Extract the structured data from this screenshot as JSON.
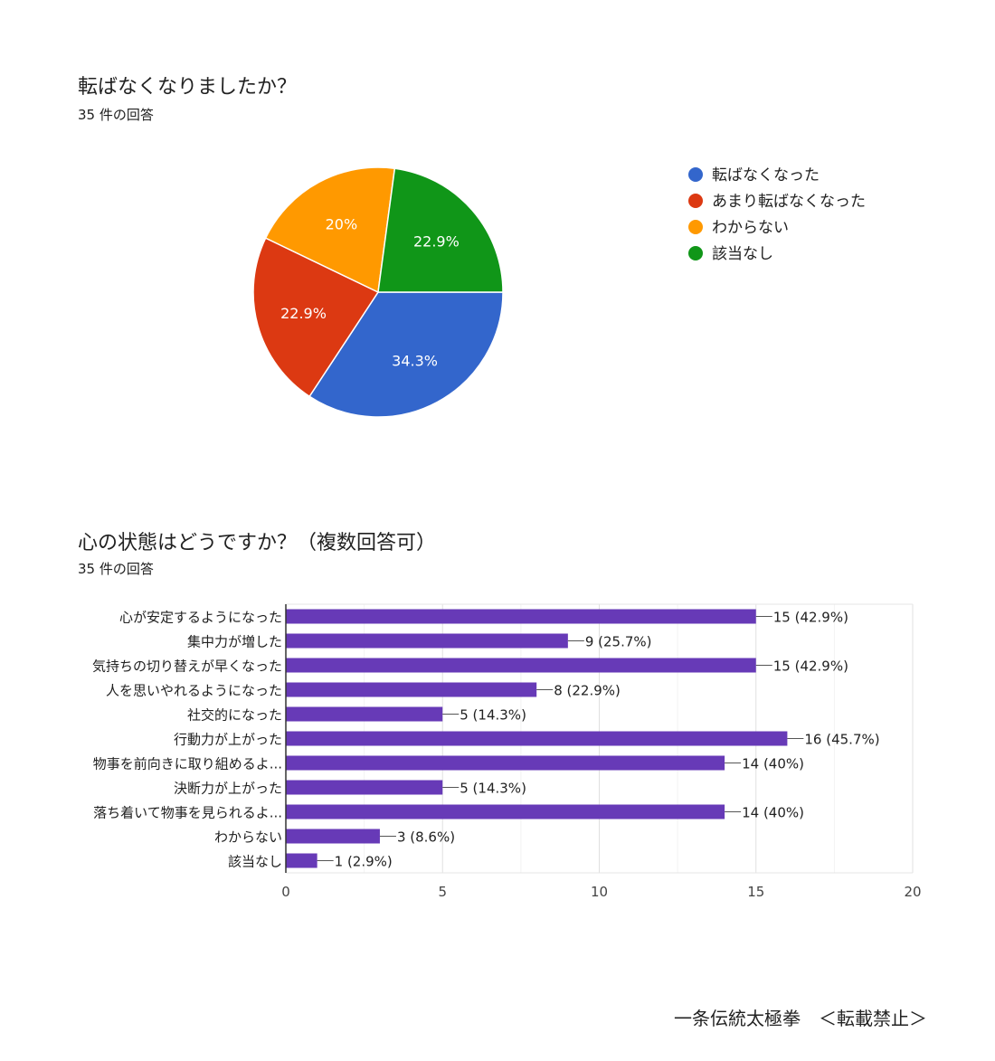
{
  "chart_data": [
    {
      "type": "pie",
      "title": "転ばなくなりましたか？",
      "subtitle": "35 件の回答",
      "slices": [
        {
          "label": "転ばなくなった",
          "value": 34.3,
          "display": "34.3%",
          "color": "#3366cc"
        },
        {
          "label": "あまり転ばなくなった",
          "value": 22.9,
          "display": "22.9%",
          "color": "#dc3912"
        },
        {
          "label": "わからない",
          "value": 20,
          "display": "20%",
          "color": "#ff9900"
        },
        {
          "label": "該当なし",
          "value": 22.9,
          "display": "22.9%",
          "color": "#109618"
        }
      ],
      "legend_position": "right"
    },
    {
      "type": "bar",
      "orientation": "horizontal",
      "title": "心の状態はどうですか？（複数回答可）",
      "subtitle": "35 件の回答",
      "categories": [
        "心が安定するようになった",
        "集中力が増した",
        "気持ちの切り替えが早くなった",
        "人を思いやれるようになった",
        "社交的になった",
        "行動力が上がった",
        "物事を前向きに取り組めるよ...",
        "決断力が上がった",
        "落ち着いて物事を見られるよ...",
        "わからない",
        "該当なし"
      ],
      "values": [
        15,
        9,
        15,
        8,
        5,
        16,
        14,
        5,
        14,
        3,
        1
      ],
      "data_labels": [
        "15 (42.9%)",
        "9 (25.7%)",
        "15 (42.9%)",
        "8 (22.9%)",
        "5 (14.3%)",
        "16 (45.7%)",
        "14 (40%)",
        "5 (14.3%)",
        "14 (40%)",
        "3 (8.6%)",
        "1 (2.9%)"
      ],
      "xlim": [
        0,
        20
      ],
      "x_ticks": [
        "0",
        "5",
        "10",
        "15",
        "20"
      ],
      "bar_color": "#673ab7",
      "grid": true
    }
  ],
  "footer": "一条伝統太極拳　＜転載禁止＞"
}
